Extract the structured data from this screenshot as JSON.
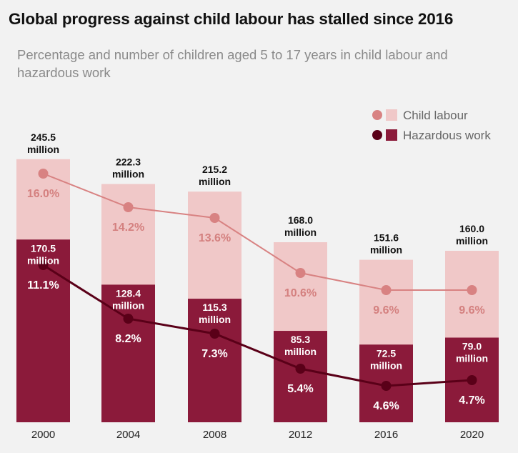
{
  "title": "Global progress against child labour has stalled since 2016",
  "subtitle": "Percentage and number of children aged 5 to 17 years in child labour and hazardous work",
  "colors": {
    "child_bar": "#f0c8c8",
    "haz_bar": "#8b1a3a",
    "child_line": "#d88282",
    "haz_line": "#5a0018",
    "child_pct_text": "#d4807f"
  },
  "chart_data": {
    "type": "bar",
    "categories": [
      "2000",
      "2004",
      "2008",
      "2012",
      "2016",
      "2020"
    ],
    "series": [
      {
        "name": "Child labour",
        "values": [
          245.5,
          222.3,
          215.2,
          168.0,
          151.6,
          160.0
        ],
        "value_labels": [
          "245.5",
          "222.3",
          "215.2",
          "168.0",
          "151.6",
          "160.0"
        ],
        "unit": "million",
        "percent": [
          16.0,
          14.2,
          13.6,
          10.6,
          9.6,
          9.6
        ],
        "percent_labels": [
          "16.0%",
          "14.2%",
          "13.6%",
          "10.6%",
          "9.6%",
          "9.6%"
        ]
      },
      {
        "name": "Hazardous work",
        "values": [
          170.5,
          128.4,
          115.3,
          85.3,
          72.5,
          79.0
        ],
        "value_labels": [
          "170.5",
          "128.4",
          "115.3",
          "85.3",
          "72.5",
          "79.0"
        ],
        "unit": "million",
        "percent": [
          11.1,
          8.2,
          7.3,
          5.4,
          4.6,
          4.7
        ],
        "percent_labels": [
          "11.1%",
          "8.2%",
          "7.3%",
          "5.4%",
          "4.6%",
          "4.7%"
        ]
      }
    ],
    "legend": [
      "Child labour",
      "Hazardous work"
    ],
    "legend_position": "top-right",
    "grid": false
  }
}
